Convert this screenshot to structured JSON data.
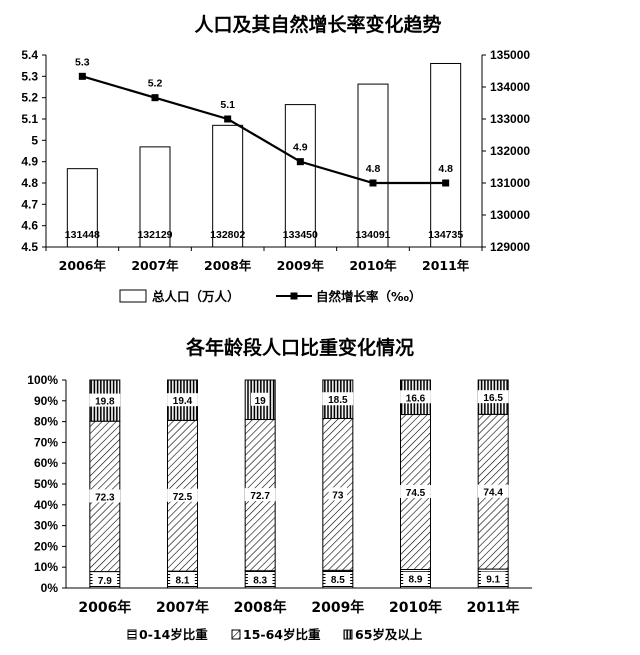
{
  "chart_data": [
    {
      "type": "bar+line",
      "title": "人口及其自然增长率变化趋势",
      "categories": [
        "2006年",
        "2007年",
        "2008年",
        "2009年",
        "2010年",
        "2011年"
      ],
      "left_axis": {
        "ticks": [
          "4.5",
          "4.6",
          "4.7",
          "4.8",
          "4.9",
          "5",
          "5.1",
          "5.2",
          "5.3",
          "5.4"
        ],
        "ylim": [
          4.5,
          5.4
        ]
      },
      "right_axis": {
        "ticks": [
          "129000",
          "130000",
          "131000",
          "132000",
          "133000",
          "134000",
          "135000"
        ],
        "ylim": [
          129000,
          135000
        ]
      },
      "series": [
        {
          "name": "总人口（万人）",
          "type": "bar",
          "axis": "right",
          "values": [
            131448,
            132129,
            132802,
            133450,
            134091,
            134735
          ],
          "labels": [
            "131448",
            "132129",
            "132802",
            "133450",
            "134091",
            "134735"
          ]
        },
        {
          "name": "自然增长率（‰）",
          "type": "line",
          "axis": "left",
          "values": [
            5.3,
            5.2,
            5.1,
            4.9,
            4.8,
            4.8
          ],
          "labels": [
            "5.3",
            "5.2",
            "5.1",
            "4.9",
            "4.8",
            "4.8"
          ]
        }
      ],
      "legend_position": "bottom",
      "grid": false
    },
    {
      "type": "stacked-bar",
      "title": "各年龄段人口比重变化情况",
      "categories": [
        "2006年",
        "2007年",
        "2008年",
        "2009年",
        "2010年",
        "2011年"
      ],
      "y_ticks": [
        "0%",
        "10%",
        "20%",
        "30%",
        "40%",
        "50%",
        "60%",
        "70%",
        "80%",
        "90%",
        "100%"
      ],
      "ylim": [
        0,
        100
      ],
      "series": [
        {
          "name": "0-14岁比重",
          "values": [
            7.9,
            8.1,
            8.3,
            8.5,
            8.9,
            9.1
          ],
          "labels": [
            "7.9",
            "8.1",
            "8.3",
            "8.5",
            "8.9",
            "9.1"
          ]
        },
        {
          "name": "15-64岁比重",
          "values": [
            72.3,
            72.5,
            72.7,
            73,
            74.5,
            74.4
          ],
          "labels": [
            "72.3",
            "72.5",
            "72.7",
            "73",
            "74.5",
            "74.4"
          ]
        },
        {
          "name": "65岁及以上",
          "values": [
            19.8,
            19.4,
            19,
            18.5,
            16.6,
            16.5
          ],
          "labels": [
            "19.8",
            "19.4",
            "19",
            "18.5",
            "16.6",
            "16.5"
          ]
        }
      ],
      "legend_position": "bottom",
      "grid": false
    }
  ]
}
